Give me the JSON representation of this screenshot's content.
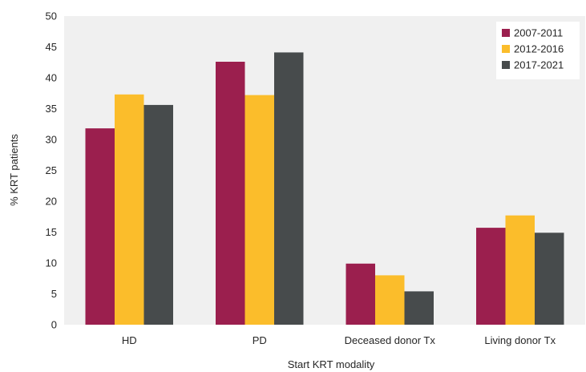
{
  "chart_data": {
    "type": "bar",
    "title": "",
    "xlabel": "Start KRT modality",
    "ylabel": "% KRT patients",
    "categories": [
      "HD",
      "PD",
      "Deceased donor Tx",
      "Living donor Tx"
    ],
    "series": [
      {
        "name": "2007-2011",
        "values": [
          31.8,
          42.6,
          9.9,
          15.7
        ]
      },
      {
        "name": "2012-2016",
        "values": [
          37.3,
          37.2,
          8.0,
          17.7
        ]
      },
      {
        "name": "2017-2021",
        "values": [
          35.6,
          44.1,
          5.4,
          14.9
        ]
      }
    ],
    "yticks": [
      0,
      5,
      10,
      15,
      20,
      25,
      30,
      35,
      40,
      45,
      50
    ],
    "ylim": [
      0,
      50
    ],
    "grid": false,
    "plot_background": "#f0f0f0",
    "legend_position": "top-right",
    "colors": [
      "#9b1f4e",
      "#fbbd2b",
      "#474b4c"
    ]
  }
}
